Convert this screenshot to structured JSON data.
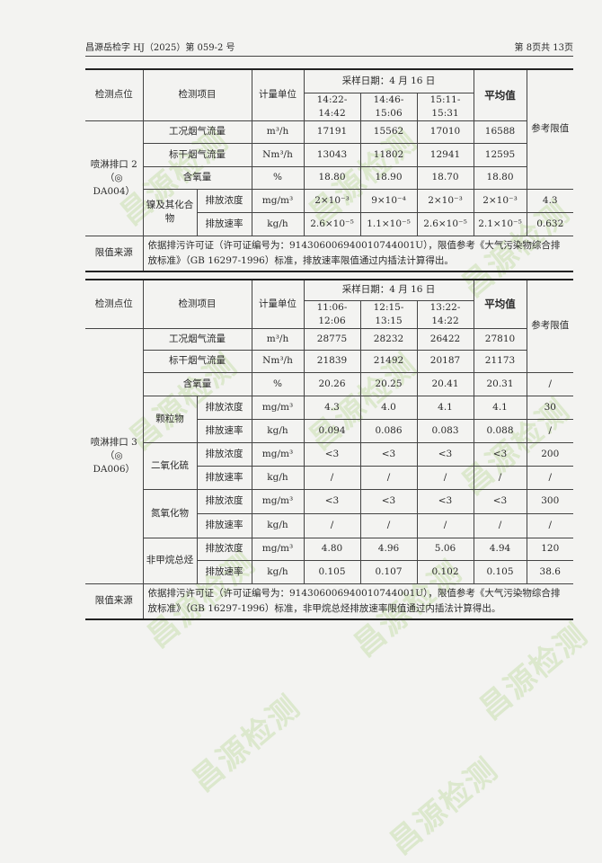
{
  "header": {
    "doc_number": "昌源岳检字 HJ（2025）第 059-2 号",
    "page": "第 8页共 13页"
  },
  "watermark": "昌源检测",
  "table1": {
    "headers": {
      "point": "检测点位",
      "item": "检测项目",
      "unit": "计量单位",
      "date": "采样日期：4 月 16 日",
      "times": [
        "14:22-14:42",
        "14:46-15:06",
        "15:11-15:31"
      ],
      "avg": "平均值",
      "limit": "参考限值"
    },
    "point": "喷淋排口 2（◎ DA004）",
    "rows": [
      {
        "item": "工况烟气流量",
        "unit": "m³/h",
        "values": [
          "17191",
          "15562",
          "17010"
        ],
        "avg": "16588"
      },
      {
        "item": "标干烟气流量",
        "unit": "Nm³/h",
        "values": [
          "13043",
          "11802",
          "12941"
        ],
        "avg": "12595"
      },
      {
        "item": "含氧量",
        "unit": "%",
        "values": [
          "18.80",
          "18.90",
          "18.70"
        ],
        "avg": "18.80"
      }
    ],
    "groups": [
      {
        "name": "镍及其化合物",
        "rows": [
          {
            "item": "排放浓度",
            "unit": "mg/m³",
            "values": [
              "2×10⁻³",
              "9×10⁻⁴",
              "2×10⁻³"
            ],
            "avg": "2×10⁻³",
            "limit": "4.3"
          },
          {
            "item": "排放速率",
            "unit": "kg/h",
            "values": [
              "2.6×10⁻⁵",
              "1.1×10⁻⁵",
              "2.6×10⁻⁵"
            ],
            "avg": "2.1×10⁻⁵",
            "limit": "0.632"
          }
        ]
      }
    ],
    "source_label": "限值来源",
    "source_text": "依据排污许可证（许可证编号为：91430600694001074400 1U），限值参考《大气污染物综合排放标准》（GB 16297-1996）标准，排放速率限值通过内插法计算得出。"
  },
  "table2": {
    "headers": {
      "point": "检测点位",
      "item": "检测项目",
      "unit": "计量单位",
      "date": "采样日期：4 月 16 日",
      "times": [
        "11:06-12:06",
        "12:15-13:15",
        "13:22-14:22"
      ],
      "avg": "平均值",
      "limit": "参考限值"
    },
    "point": "喷淋排口 3（◎ DA006）",
    "rows": [
      {
        "item": "工况烟气流量",
        "unit": "m³/h",
        "values": [
          "28775",
          "28232",
          "26422"
        ],
        "avg": "27810"
      },
      {
        "item": "标干烟气流量",
        "unit": "Nm³/h",
        "values": [
          "21839",
          "21492",
          "20187"
        ],
        "avg": "21173"
      },
      {
        "item": "含氧量",
        "unit": "%",
        "values": [
          "20.26",
          "20.25",
          "20.41"
        ],
        "avg": "20.31",
        "limit": "/"
      }
    ],
    "groups": [
      {
        "name": "颗粒物",
        "rows": [
          {
            "item": "排放浓度",
            "unit": "mg/m³",
            "values": [
              "4.3",
              "4.0",
              "4.1"
            ],
            "avg": "4.1",
            "limit": "30"
          },
          {
            "item": "排放速率",
            "unit": "kg/h",
            "values": [
              "0.094",
              "0.086",
              "0.083"
            ],
            "avg": "0.088",
            "limit": "/"
          }
        ]
      },
      {
        "name": "二氧化硫",
        "rows": [
          {
            "item": "排放浓度",
            "unit": "mg/m³",
            "values": [
              "<3",
              "<3",
              "<3"
            ],
            "avg": "<3",
            "limit": "200"
          },
          {
            "item": "排放速率",
            "unit": "kg/h",
            "values": [
              "/",
              "/",
              "/"
            ],
            "avg": "/",
            "limit": "/"
          }
        ]
      },
      {
        "name": "氮氧化物",
        "rows": [
          {
            "item": "排放浓度",
            "unit": "mg/m³",
            "values": [
              "<3",
              "<3",
              "<3"
            ],
            "avg": "<3",
            "limit": "300"
          },
          {
            "item": "排放速率",
            "unit": "kg/h",
            "values": [
              "/",
              "/",
              "/"
            ],
            "avg": "/",
            "limit": "/"
          }
        ]
      },
      {
        "name": "非甲烷总烃",
        "rows": [
          {
            "item": "排放浓度",
            "unit": "mg/m³",
            "values": [
              "4.80",
              "4.96",
              "5.06"
            ],
            "avg": "4.94",
            "limit": "120"
          },
          {
            "item": "排放速率",
            "unit": "kg/h",
            "values": [
              "0.105",
              "0.107",
              "0.102"
            ],
            "avg": "0.105",
            "limit": "38.6"
          }
        ]
      }
    ],
    "source_label": "限值来源",
    "source_text": "依据排污许可证（许可证编号为：91430600694001074400 1U），限值参考《大气污染物综合排放标准》（GB 16297-1996）标准，非甲烷总烃排放速率限值通过内插法计算得出。"
  }
}
